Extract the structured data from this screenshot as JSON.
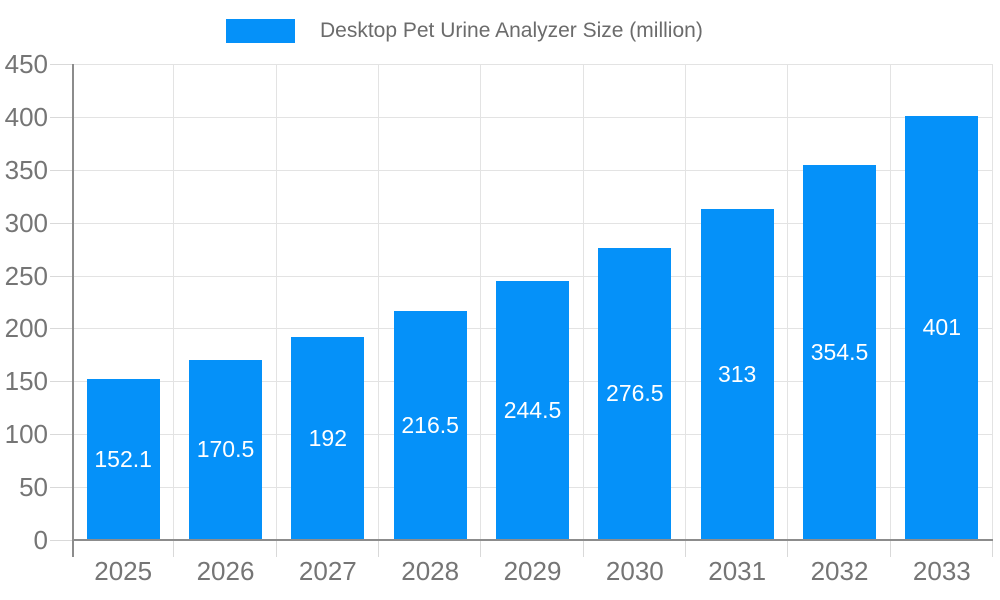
{
  "legend": {
    "position": "top"
  },
  "chart_data": {
    "type": "bar",
    "title": "Desktop Pet Urine Analyzer Size (million)",
    "legend": [
      "Desktop Pet Urine Analyzer Size (million)"
    ],
    "categories": [
      "2025",
      "2026",
      "2027",
      "2028",
      "2029",
      "2030",
      "2031",
      "2032",
      "2033"
    ],
    "values": [
      152.1,
      170.5,
      192,
      216.5,
      244.5,
      276.5,
      313,
      354.5,
      401
    ],
    "xlabel": "",
    "ylabel": "",
    "ylim": [
      0,
      450
    ],
    "ytick_step": 50,
    "grid": true,
    "legend_position": "top",
    "value_labels": "centered-white-inside-bars"
  },
  "colors": {
    "bar": "#0591f9",
    "grid": "#e3e3e3",
    "axis": "#8c8c8c",
    "tick": "#d9d9d9",
    "axis_label": "#757575",
    "legend_text": "#6b6b6b",
    "value_label": "#ffffff",
    "background": "#ffffff"
  }
}
